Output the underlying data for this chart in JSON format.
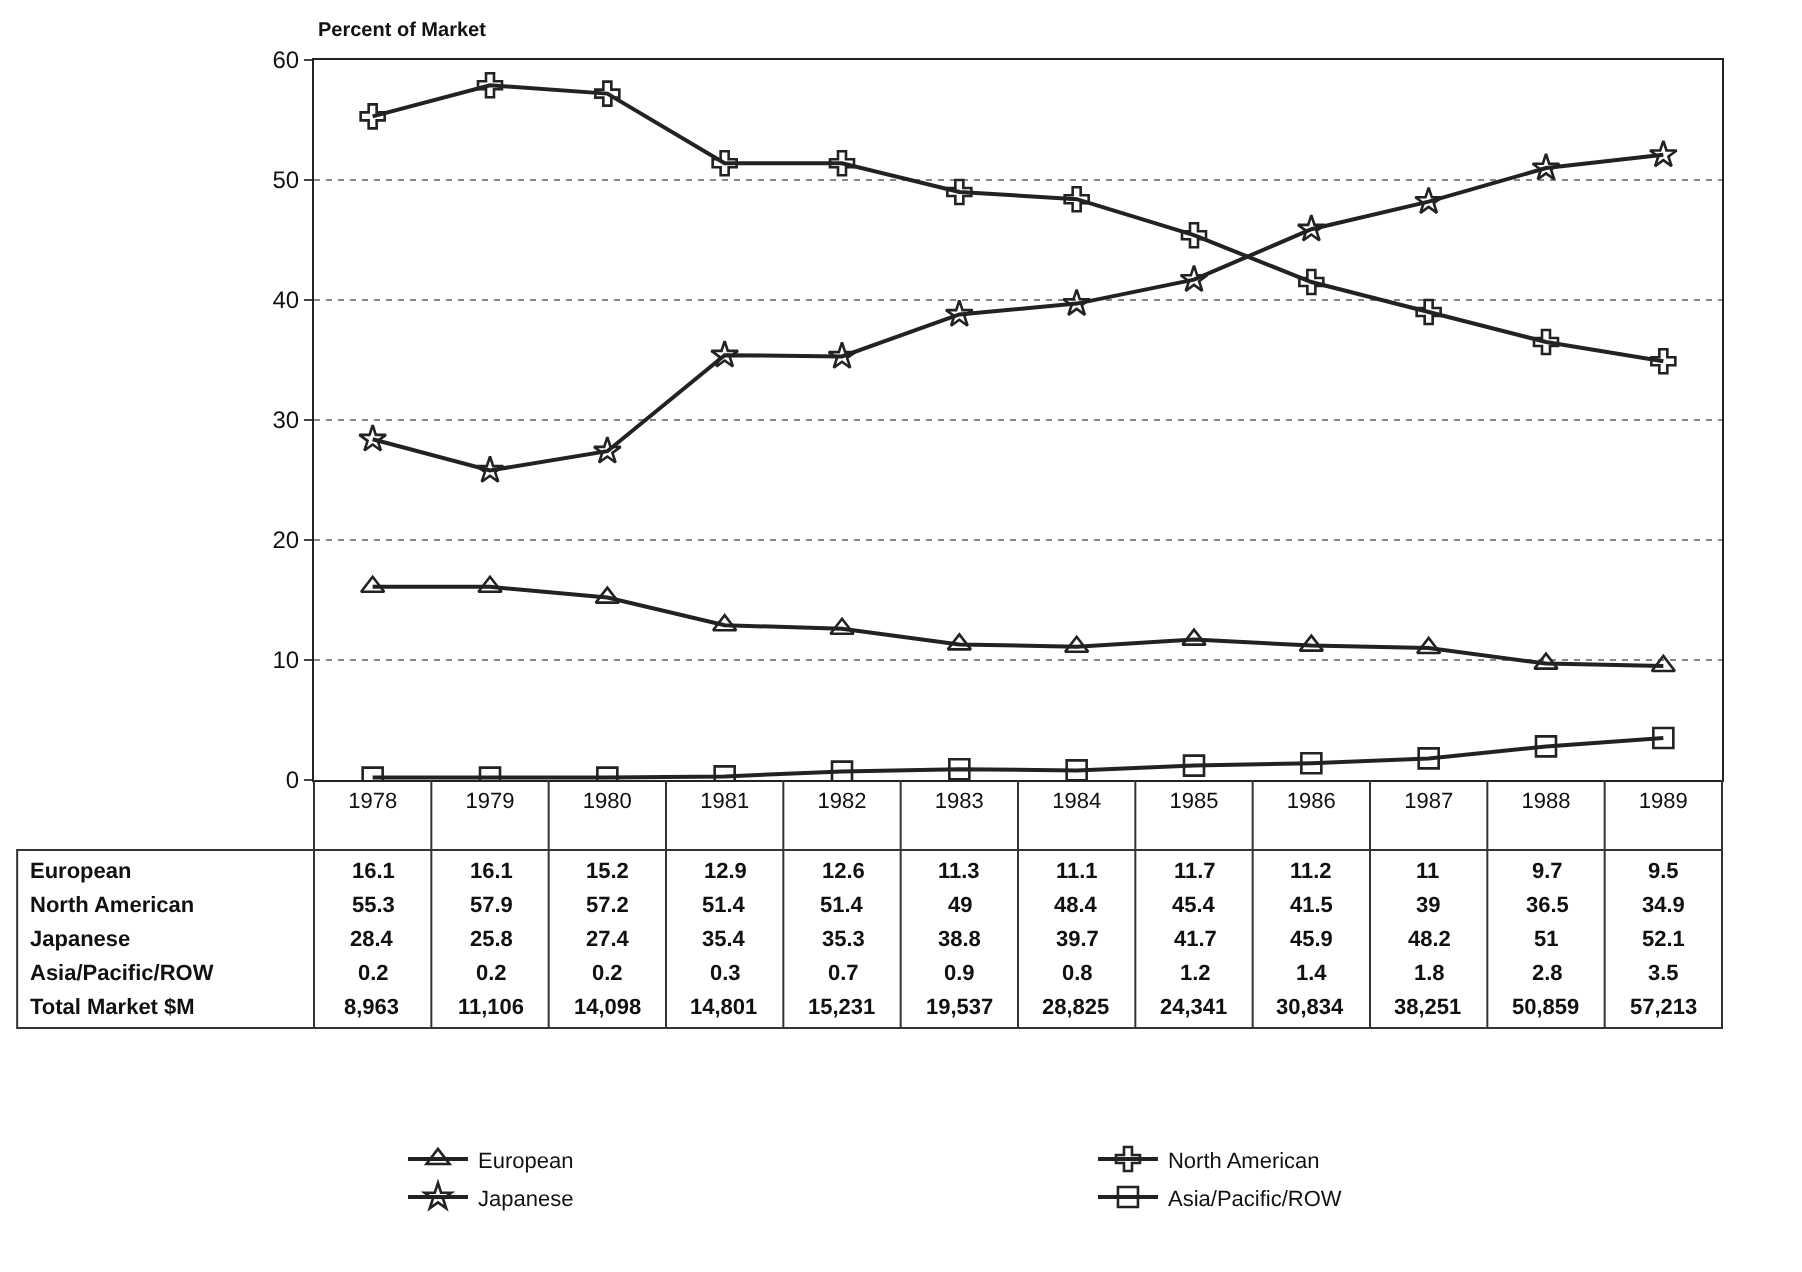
{
  "chart_data": {
    "type": "line",
    "ylabel": "Percent of Market",
    "categories": [
      "1978",
      "1979",
      "1980",
      "1981",
      "1982",
      "1983",
      "1984",
      "1985",
      "1986",
      "1987",
      "1988",
      "1989"
    ],
    "series": [
      {
        "name": "European",
        "color": "#222222",
        "marker": "triangle",
        "values": [
          16.1,
          16.1,
          15.2,
          12.9,
          12.6,
          11.3,
          11.1,
          11.7,
          11.2,
          11,
          9.7,
          9.5
        ]
      },
      {
        "name": "North American",
        "color": "#222222",
        "marker": "cross",
        "values": [
          55.3,
          57.9,
          57.2,
          51.4,
          51.4,
          49,
          48.4,
          45.4,
          41.5,
          39,
          36.5,
          34.9
        ]
      },
      {
        "name": "Japanese",
        "color": "#222222",
        "marker": "star",
        "values": [
          28.4,
          25.8,
          27.4,
          35.4,
          35.3,
          38.8,
          39.7,
          41.7,
          45.9,
          48.2,
          51,
          52.1
        ]
      },
      {
        "name": "Asia/Pacific/ROW",
        "color": "#222222",
        "marker": "square",
        "values": [
          0.2,
          0.2,
          0.2,
          0.3,
          0.7,
          0.9,
          0.8,
          1.2,
          1.4,
          1.8,
          2.8,
          3.5
        ]
      }
    ],
    "ylim": [
      0,
      60
    ],
    "yticks": [
      0,
      10,
      20,
      30,
      40,
      50,
      60
    ],
    "grid": "y",
    "legend": "bottom",
    "data_labels": true,
    "line_style": "solid",
    "annotations": [
      "Total Market $M",
      "8,963",
      "11,106",
      "14,098",
      "14,801",
      "15,231",
      "19,537",
      "28,825",
      "24,341",
      "30,834",
      "38,251",
      "50,859",
      "57,213"
    ]
  }
}
